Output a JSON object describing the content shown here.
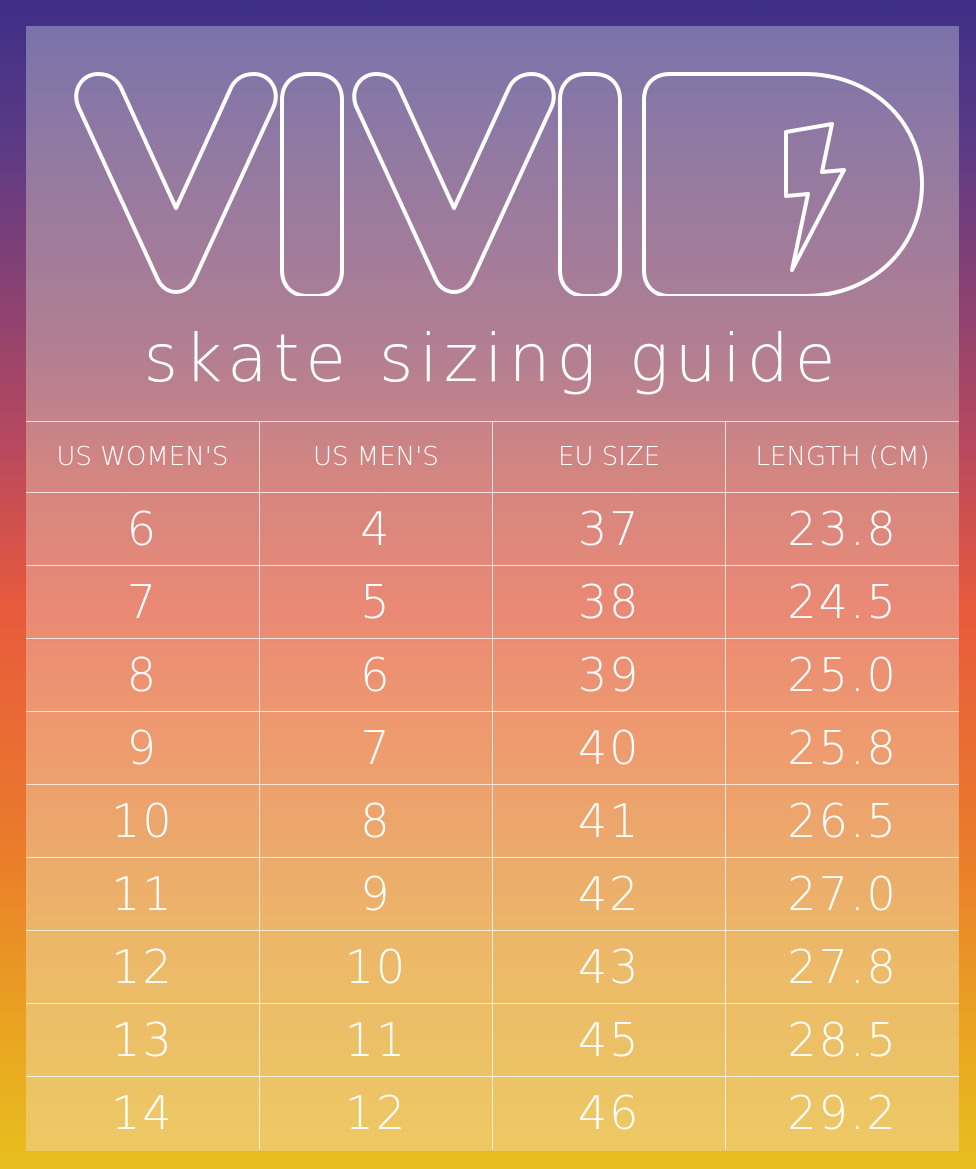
{
  "brand": {
    "logo_text": "VIVID",
    "subtitle": "skate sizing guide"
  },
  "table": {
    "headers": [
      "US WOMEN'S",
      "US MEN'S",
      "EU SIZE",
      "LENGTH (CM)"
    ],
    "rows": [
      [
        "6",
        "4",
        "37",
        "23.8"
      ],
      [
        "7",
        "5",
        "38",
        "24.5"
      ],
      [
        "8",
        "6",
        "39",
        "25.0"
      ],
      [
        "9",
        "7",
        "40",
        "25.8"
      ],
      [
        "10",
        "8",
        "41",
        "26.5"
      ],
      [
        "11",
        "9",
        "42",
        "27.0"
      ],
      [
        "12",
        "10",
        "43",
        "27.8"
      ],
      [
        "13",
        "11",
        "45",
        "28.5"
      ],
      [
        "14",
        "12",
        "46",
        "29.2"
      ]
    ]
  },
  "icons": {
    "logo_icon": "lightning-bolt-icon"
  },
  "colors": {
    "border_top": "#3d2e86",
    "border_bottom": "#e8bf1e",
    "text": "#ffffff"
  }
}
